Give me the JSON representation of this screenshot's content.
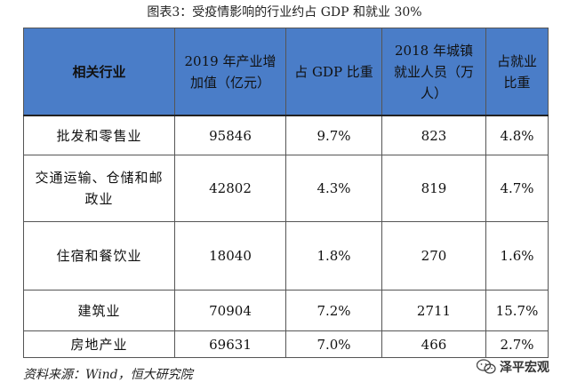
{
  "title": "图表3：受疫情影响的行业约占 GDP 和就业 30%",
  "table": {
    "headers": [
      "相关行业",
      "2019 年产业增加值（亿元）",
      "占 GDP 比重",
      "2018 年城镇就业人员（万人）",
      "占就业比重"
    ],
    "rows": [
      [
        "批发和零售业",
        "95846",
        "9.7%",
        "823",
        "4.8%"
      ],
      [
        "交通运输、仓储和邮政业",
        "42802",
        "4.3%",
        "819",
        "4.7%"
      ],
      [
        "住宿和餐饮业",
        "18040",
        "1.8%",
        "270",
        "1.6%"
      ],
      [
        "建筑业",
        "70904",
        "7.2%",
        "2711",
        "15.7%"
      ],
      [
        "房地产业",
        "69631",
        "7.0%",
        "466",
        "2.7%"
      ]
    ]
  },
  "source": "资料来源：Wind，恒大研究院",
  "watermark": {
    "text": "泽平宏观",
    "icon": "wechat-icon"
  }
}
